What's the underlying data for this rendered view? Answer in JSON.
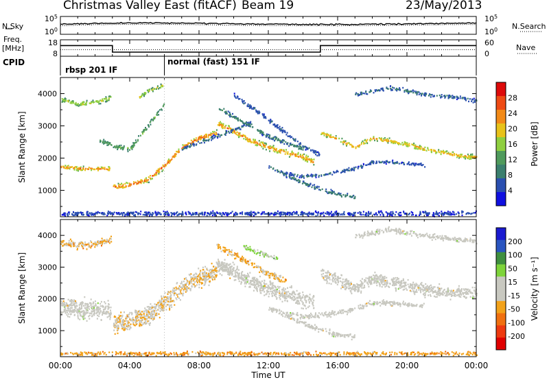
{
  "header": {
    "station": "Christmas Valley East (fitACF)",
    "beam": "Beam 19",
    "date": "23/May/2013"
  },
  "side_labels": {
    "nsky": "N.Sky",
    "nsearch": "N.Search",
    "freq_line1": "Freq.",
    "freq_line2": "[MHz]",
    "nave": "Nave",
    "cpid": "CPID"
  },
  "noise_axis": {
    "left_ticks": [
      "10^5",
      "10^0"
    ],
    "right_ticks": [
      "10^5",
      "10^0"
    ]
  },
  "freq_axis": {
    "left_ticks": [
      "18",
      "8"
    ],
    "right_ticks": [
      "60",
      "0"
    ]
  },
  "cpid_segments": [
    {
      "label": "rbsp 201 IF",
      "start_hour": 0,
      "end_hour": 6
    },
    {
      "label": "normal (fast) 151 IF",
      "start_hour": 6,
      "end_hour": 24
    }
  ],
  "colors": {
    "power_scale": [
      "#1010e0",
      "#2a4fb0",
      "#3b7f6e",
      "#4f9a5c",
      "#8fcf40",
      "#e8c21a",
      "#f28a18",
      "#ee4a14",
      "#dd0a0a"
    ],
    "velocity_scale": [
      "#1a1ad0",
      "#2a55c0",
      "#3f8f3f",
      "#7ed43a",
      "#c8c8c0",
      "#c8c8c0",
      "#f2a21a",
      "#f07010",
      "#ee3a10",
      "#e00000"
    ]
  },
  "chart_data": [
    {
      "type": "line",
      "panel": "noise",
      "title": "",
      "x_unit": "hours UT",
      "xlim": [
        0,
        24
      ],
      "y_scale": "log",
      "ylim": [
        1,
        100000
      ],
      "series": [
        {
          "name": "N.Sky",
          "x": [
            0,
            2,
            4,
            6,
            8,
            10,
            12,
            14,
            16,
            18,
            20,
            22,
            24
          ],
          "y": [
            600,
            1200,
            1500,
            1500,
            1300,
            900,
            700,
            600,
            600,
            700,
            900,
            1200,
            1500
          ]
        },
        {
          "name": "N.Search",
          "x": [
            0,
            2,
            4,
            6,
            8,
            10,
            12,
            14,
            16,
            18,
            20,
            22,
            24
          ],
          "y": [
            250,
            500,
            600,
            600,
            500,
            350,
            280,
            250,
            250,
            300,
            380,
            500,
            600
          ]
        }
      ]
    },
    {
      "type": "line",
      "panel": "frequency",
      "x_unit": "hours UT",
      "xlim": [
        0,
        24
      ],
      "ylim": [
        8,
        18
      ],
      "y2lim": [
        0,
        60
      ],
      "series": [
        {
          "name": "Freq.",
          "x": [
            0,
            3,
            3,
            15,
            15,
            24
          ],
          "y": [
            14.5,
            14.5,
            10.5,
            10.5,
            14.5,
            14.5
          ]
        },
        {
          "name": "Nave",
          "x": [
            0,
            24
          ],
          "y": [
            12,
            12
          ]
        }
      ]
    },
    {
      "type": "heatmap",
      "panel": "power",
      "xlabel": "",
      "ylabel": "Slant Range [km]",
      "xlim": [
        0,
        24
      ],
      "ylim": [
        180,
        4500
      ],
      "y_ticks": [
        1000,
        2000,
        3000,
        4000
      ],
      "colorbar": {
        "label": "Power [dB]",
        "ticks": [
          4,
          8,
          12,
          16,
          20,
          24,
          28
        ],
        "range": [
          0,
          32
        ]
      },
      "bands": [
        {
          "x": [
            0,
            1,
            2,
            2.9
          ],
          "y": [
            1750,
            1700,
            1700,
            1680
          ],
          "width": 170,
          "peak_db": 24
        },
        {
          "x": [
            3,
            4,
            5,
            6,
            7,
            8,
            9
          ],
          "y": [
            1120,
            1200,
            1350,
            1800,
            2350,
            2650,
            2800
          ],
          "width": 200,
          "peak_db": 26
        },
        {
          "x": [
            9,
            10,
            11,
            12,
            13,
            14,
            14.6
          ],
          "y": [
            3100,
            2850,
            2550,
            2350,
            2200,
            2050,
            1900
          ],
          "width": 230,
          "peak_db": 24
        },
        {
          "x": [
            15,
            16,
            17,
            18,
            19,
            20,
            21,
            22,
            23,
            24
          ],
          "y": [
            2800,
            2600,
            2350,
            2650,
            2550,
            2450,
            2300,
            2200,
            2100,
            2050
          ],
          "width": 180,
          "peak_db": 22
        },
        {
          "x": [
            0,
            1,
            2,
            2.9
          ],
          "y": [
            3850,
            3700,
            3750,
            3900
          ],
          "width": 180,
          "peak_db": 18
        },
        {
          "x": [
            2.2,
            3,
            4,
            5,
            6
          ],
          "y": [
            2600,
            2400,
            2300,
            3000,
            3700
          ],
          "width": 180,
          "peak_db": 14
        },
        {
          "x": [
            4.5,
            5,
            5.5,
            6
          ],
          "y": [
            3900,
            4100,
            4200,
            4300
          ],
          "width": 160,
          "peak_db": 18
        },
        {
          "x": [
            9,
            10,
            11,
            12,
            13,
            14
          ],
          "y": [
            3600,
            3300,
            3000,
            2700,
            2500,
            2300
          ],
          "width": 180,
          "peak_db": 10
        },
        {
          "x": [
            10,
            11,
            12,
            13,
            14,
            15
          ],
          "y": [
            3950,
            3600,
            3200,
            2800,
            2400,
            2100
          ],
          "width": 160,
          "peak_db": 7
        },
        {
          "x": [
            12,
            13,
            14,
            15,
            16,
            17
          ],
          "y": [
            1750,
            1500,
            1250,
            1050,
            900,
            800
          ],
          "width": 150,
          "peak_db": 9
        },
        {
          "x": [
            13,
            14,
            15,
            16,
            17,
            18,
            19,
            20,
            21
          ],
          "y": [
            1550,
            1450,
            1500,
            1600,
            1700,
            1900,
            1900,
            1850,
            1800
          ],
          "width": 130,
          "peak_db": 7
        },
        {
          "x": [
            17,
            18,
            19,
            20,
            21,
            22,
            23,
            24
          ],
          "y": [
            4000,
            4100,
            4200,
            4100,
            4000,
            3950,
            3900,
            3800
          ],
          "width": 140,
          "peak_db": 8
        },
        {
          "x": [
            7,
            8,
            9,
            10,
            11
          ],
          "y": [
            2300,
            2500,
            2700,
            2900,
            3100
          ],
          "width": 140,
          "peak_db": 8
        },
        {
          "x": [
            0,
            4,
            8,
            12,
            16,
            20,
            24
          ],
          "y": [
            300,
            300,
            300,
            300,
            300,
            300,
            300
          ],
          "width": 160,
          "peak_db": 5
        }
      ]
    },
    {
      "type": "heatmap",
      "panel": "velocity",
      "xlabel": "Time UT",
      "ylabel": "Slant Range [km]",
      "xlim": [
        0,
        24
      ],
      "ylim": [
        180,
        4500
      ],
      "y_ticks": [
        1000,
        2000,
        3000,
        4000
      ],
      "x_ticks": [
        "00:00",
        "04:00",
        "08:00",
        "12:00",
        "16:00",
        "20:00",
        "00:00"
      ],
      "colorbar": {
        "label": "Velocity [m s^-1]",
        "ticks": [
          200,
          100,
          50,
          15,
          -15,
          -50,
          -100,
          -200
        ],
        "range": [
          -250,
          250
        ]
      },
      "bands": [
        {
          "x": [
            0,
            1,
            2,
            2.9
          ],
          "y": [
            1750,
            1700,
            1700,
            1680
          ],
          "width": 700,
          "v": 0
        },
        {
          "x": [
            3,
            4,
            5,
            6,
            7,
            8,
            9
          ],
          "y": [
            1200,
            1300,
            1500,
            1900,
            2400,
            2700,
            2850
          ],
          "width": 700,
          "v": -40
        },
        {
          "x": [
            9,
            10,
            11,
            12,
            13,
            14,
            14.6
          ],
          "y": [
            3100,
            2850,
            2550,
            2350,
            2150,
            2000,
            1900
          ],
          "width": 600,
          "v": 0
        },
        {
          "x": [
            15,
            16,
            17,
            18,
            19,
            20,
            21,
            22,
            23,
            24
          ],
          "y": [
            2800,
            2600,
            2350,
            2650,
            2550,
            2450,
            2300,
            2250,
            2200,
            2200
          ],
          "width": 450,
          "v": 0
        },
        {
          "x": [
            0,
            1,
            2,
            2.9
          ],
          "y": [
            3800,
            3700,
            3750,
            3900
          ],
          "width": 300,
          "v": -60
        },
        {
          "x": [
            9,
            10,
            11,
            12,
            13
          ],
          "y": [
            3700,
            3400,
            3100,
            2800,
            2600
          ],
          "width": 250,
          "v": -60
        },
        {
          "x": [
            12,
            13,
            14,
            15,
            16,
            17
          ],
          "y": [
            1750,
            1500,
            1250,
            1050,
            900,
            800
          ],
          "width": 200,
          "v": 0
        },
        {
          "x": [
            17,
            18,
            19,
            20,
            21,
            22,
            23,
            24
          ],
          "y": [
            4000,
            4100,
            4200,
            4100,
            4000,
            3950,
            3900,
            3800
          ],
          "width": 200,
          "v": 0
        },
        {
          "x": [
            13,
            14,
            15,
            16,
            17,
            18,
            19,
            20,
            21
          ],
          "y": [
            1550,
            1450,
            1500,
            1600,
            1700,
            1900,
            1900,
            1850,
            1800
          ],
          "width": 200,
          "v": 0
        },
        {
          "x": [
            10.5,
            11.5,
            12.5
          ],
          "y": [
            3700,
            3450,
            3300
          ],
          "width": 180,
          "v": 60
        },
        {
          "x": [
            0,
            4,
            8,
            12,
            16,
            20,
            24
          ],
          "y": [
            300,
            300,
            300,
            300,
            300,
            300,
            300
          ],
          "width": 150,
          "v": -80
        }
      ]
    }
  ]
}
